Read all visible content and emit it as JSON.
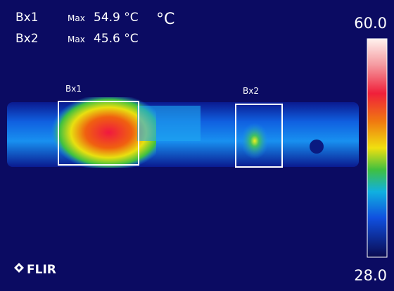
{
  "readouts": [
    {
      "box": "Bx1",
      "label": "Max",
      "value": "54.9 °C"
    },
    {
      "box": "Bx2",
      "label": "Max",
      "value": "45.6 °C"
    }
  ],
  "unit": "°C",
  "scale": {
    "max": "60.0",
    "min": "28.0"
  },
  "boxes": [
    {
      "label": "Bx1"
    },
    {
      "label": "Bx2"
    }
  ],
  "brand": "FLIR"
}
